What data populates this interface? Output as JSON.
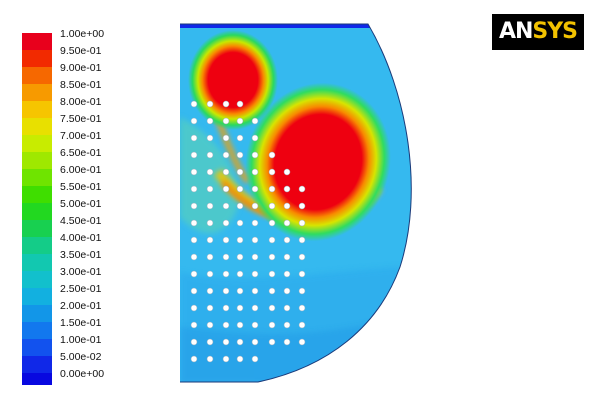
{
  "legend": {
    "labels": [
      "1.00e+00",
      "9.50e-01",
      "9.00e-01",
      "8.50e-01",
      "8.00e-01",
      "7.50e-01",
      "7.00e-01",
      "6.50e-01",
      "6.00e-01",
      "5.50e-01",
      "5.00e-01",
      "4.50e-01",
      "4.00e-01",
      "3.50e-01",
      "3.00e-01",
      "2.50e-01",
      "2.00e-01",
      "1.50e-01",
      "1.00e-01",
      "5.00e-02",
      "0.00e+00"
    ],
    "colors": [
      "#e8001c",
      "#f22a00",
      "#f66800",
      "#f79a00",
      "#f6c500",
      "#e8e000",
      "#c8ec00",
      "#9fe800",
      "#6fe400",
      "#3fde00",
      "#22d820",
      "#18d050",
      "#14cc88",
      "#12c8b0",
      "#12c0cc",
      "#12b0e0",
      "#1296e8",
      "#1278ee",
      "#1252ee",
      "#1028e8",
      "#0808e0"
    ]
  },
  "logo": {
    "brand_part1": "AN",
    "brand_part2": "SYS",
    "colors": {
      "background": "#000000",
      "text": "#ffffff",
      "accent": "#f2c200"
    }
  },
  "contour": {
    "background_color": "#35b9ef",
    "hot_color": "#f0001a"
  }
}
